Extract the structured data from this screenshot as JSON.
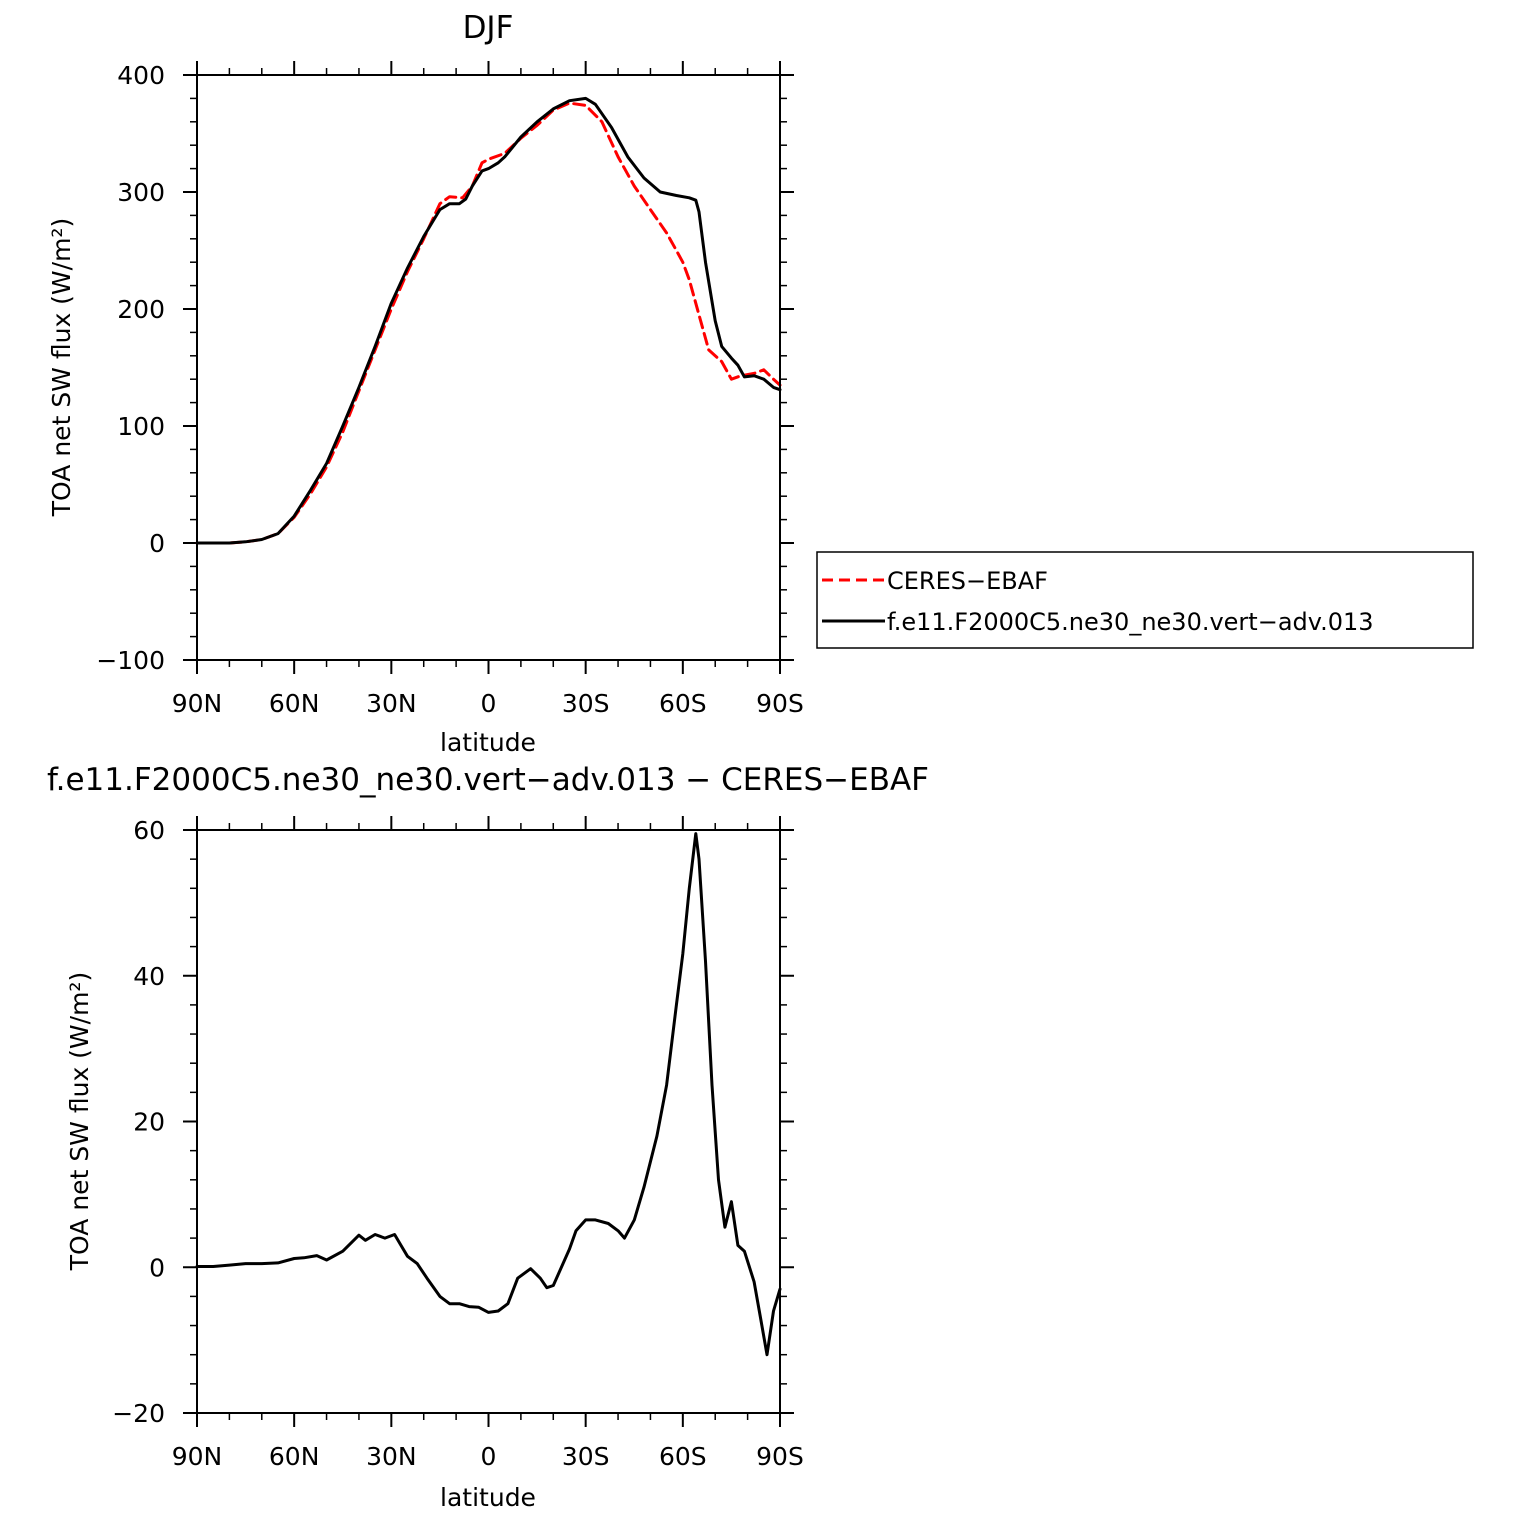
{
  "chart_data": [
    {
      "type": "line",
      "title": "DJF",
      "xlabel": "latitude",
      "ylabel": "TOA net SW flux (W/m²)",
      "xlim": [
        90,
        -90
      ],
      "ylim": [
        -100,
        400
      ],
      "xticks": [
        {
          "value": 90,
          "label": "90N"
        },
        {
          "value": 60,
          "label": "60N"
        },
        {
          "value": 30,
          "label": "30N"
        },
        {
          "value": 0,
          "label": "0"
        },
        {
          "value": -30,
          "label": "30S"
        },
        {
          "value": -60,
          "label": "60S"
        },
        {
          "value": -90,
          "label": "90S"
        }
      ],
      "yticks": [
        {
          "value": -100,
          "label": "−100"
        },
        {
          "value": 0,
          "label": "0"
        },
        {
          "value": 100,
          "label": "100"
        },
        {
          "value": 200,
          "label": "200"
        },
        {
          "value": 300,
          "label": "300"
        },
        {
          "value": 400,
          "label": "400"
        }
      ],
      "legend": "right",
      "series": [
        {
          "name": "CERES−EBAF",
          "color": "#ff0000",
          "dash": "dashed",
          "points": [
            [
              90,
              0
            ],
            [
              85,
              0
            ],
            [
              80,
              0
            ],
            [
              75,
              1
            ],
            [
              70,
              3
            ],
            [
              65,
              8
            ],
            [
              60,
              22
            ],
            [
              55,
              42
            ],
            [
              50,
              65
            ],
            [
              45,
              95
            ],
            [
              40,
              130
            ],
            [
              35,
              165
            ],
            [
              30,
              200
            ],
            [
              25,
              232
            ],
            [
              20,
              260
            ],
            [
              15,
              290
            ],
            [
              12,
              296
            ],
            [
              8,
              295
            ],
            [
              5,
              305
            ],
            [
              2,
              325
            ],
            [
              0,
              328
            ],
            [
              -5,
              333
            ],
            [
              -10,
              346
            ],
            [
              -15,
              357
            ],
            [
              -20,
              370
            ],
            [
              -25,
              376
            ],
            [
              -30,
              374
            ],
            [
              -35,
              360
            ],
            [
              -40,
              330
            ],
            [
              -45,
              305
            ],
            [
              -50,
              285
            ],
            [
              -55,
              265
            ],
            [
              -58,
              250
            ],
            [
              -60,
              240
            ],
            [
              -62,
              225
            ],
            [
              -65,
              195
            ],
            [
              -68,
              165
            ],
            [
              -72,
              155
            ],
            [
              -75,
              140
            ],
            [
              -78,
              143
            ],
            [
              -82,
              145
            ],
            [
              -85,
              148
            ],
            [
              -88,
              140
            ],
            [
              -90,
              135
            ]
          ]
        },
        {
          "name": "f.e11.F2000C5.ne30_ne30.vert−adv.013",
          "color": "#000000",
          "dash": "solid",
          "points": [
            [
              90,
              0
            ],
            [
              85,
              0
            ],
            [
              80,
              0
            ],
            [
              75,
              1
            ],
            [
              70,
              3
            ],
            [
              65,
              8
            ],
            [
              60,
              23
            ],
            [
              55,
              45
            ],
            [
              50,
              68
            ],
            [
              45,
              100
            ],
            [
              40,
              133
            ],
            [
              35,
              168
            ],
            [
              30,
              205
            ],
            [
              25,
              235
            ],
            [
              20,
              262
            ],
            [
              15,
              285
            ],
            [
              12,
              290
            ],
            [
              9,
              290
            ],
            [
              7,
              294
            ],
            [
              5,
              305
            ],
            [
              2,
              318
            ],
            [
              0,
              320
            ],
            [
              -3,
              325
            ],
            [
              -5,
              330
            ],
            [
              -10,
              347
            ],
            [
              -15,
              360
            ],
            [
              -20,
              371
            ],
            [
              -25,
              378
            ],
            [
              -30,
              380
            ],
            [
              -33,
              375
            ],
            [
              -38,
              355
            ],
            [
              -43,
              330
            ],
            [
              -48,
              312
            ],
            [
              -53,
              300
            ],
            [
              -58,
              297
            ],
            [
              -62,
              295
            ],
            [
              -64,
              293
            ],
            [
              -65,
              283
            ],
            [
              -67,
              240
            ],
            [
              -70,
              190
            ],
            [
              -72,
              168
            ],
            [
              -75,
              158
            ],
            [
              -77,
              152
            ],
            [
              -79,
              142
            ],
            [
              -82,
              143
            ],
            [
              -85,
              140
            ],
            [
              -88,
              133
            ],
            [
              -90,
              131
            ]
          ]
        }
      ]
    },
    {
      "type": "line",
      "title": "f.e11.F2000C5.ne30_ne30.vert−adv.013 − CERES−EBAF",
      "xlabel": "latitude",
      "ylabel": "TOA net SW flux (W/m²)",
      "xlim": [
        90,
        -90
      ],
      "ylim": [
        -20,
        60
      ],
      "xticks": [
        {
          "value": 90,
          "label": "90N"
        },
        {
          "value": 60,
          "label": "60N"
        },
        {
          "value": 30,
          "label": "30N"
        },
        {
          "value": 0,
          "label": "0"
        },
        {
          "value": -30,
          "label": "30S"
        },
        {
          "value": -60,
          "label": "60S"
        },
        {
          "value": -90,
          "label": "90S"
        }
      ],
      "yticks": [
        {
          "value": -20,
          "label": "−20"
        },
        {
          "value": 0,
          "label": "0"
        },
        {
          "value": 20,
          "label": "20"
        },
        {
          "value": 40,
          "label": "40"
        },
        {
          "value": 60,
          "label": "60"
        }
      ],
      "series": [
        {
          "color": "#000000",
          "dash": "solid",
          "points": [
            [
              90,
              0.1
            ],
            [
              85,
              0.1
            ],
            [
              80,
              0.3
            ],
            [
              75,
              0.5
            ],
            [
              70,
              0.5
            ],
            [
              65,
              0.6
            ],
            [
              60,
              1.2
            ],
            [
              57,
              1.3
            ],
            [
              53,
              1.6
            ],
            [
              50,
              1.0
            ],
            [
              45,
              2.2
            ],
            [
              40,
              4.4
            ],
            [
              38,
              3.7
            ],
            [
              35,
              4.5
            ],
            [
              32,
              4.0
            ],
            [
              29,
              4.5
            ],
            [
              27,
              3.0
            ],
            [
              25,
              1.5
            ],
            [
              22,
              0.5
            ],
            [
              19,
              -1.5
            ],
            [
              15,
              -4.0
            ],
            [
              12,
              -5.0
            ],
            [
              9,
              -5.0
            ],
            [
              6,
              -5.4
            ],
            [
              3,
              -5.5
            ],
            [
              0,
              -6.2
            ],
            [
              -3,
              -6.0
            ],
            [
              -6,
              -5.0
            ],
            [
              -9,
              -1.5
            ],
            [
              -13,
              -0.2
            ],
            [
              -16,
              -1.5
            ],
            [
              -18,
              -2.8
            ],
            [
              -20,
              -2.5
            ],
            [
              -25,
              2.5
            ],
            [
              -27,
              5.0
            ],
            [
              -30,
              6.5
            ],
            [
              -33,
              6.5
            ],
            [
              -37,
              6.0
            ],
            [
              -40,
              5.0
            ],
            [
              -42,
              4.0
            ],
            [
              -45,
              6.5
            ],
            [
              -48,
              11.0
            ],
            [
              -52,
              18.0
            ],
            [
              -55,
              25.0
            ],
            [
              -58,
              36.0
            ],
            [
              -60,
              43.0
            ],
            [
              -62,
              52.0
            ],
            [
              -64,
              59.5
            ],
            [
              -65,
              56.0
            ],
            [
              -67,
              42.0
            ],
            [
              -69,
              25.0
            ],
            [
              -71,
              12.0
            ],
            [
              -73,
              5.5
            ],
            [
              -75,
              9.0
            ],
            [
              -77,
              3.0
            ],
            [
              -79,
              2.2
            ],
            [
              -82,
              -2.0
            ],
            [
              -84,
              -7.0
            ],
            [
              -86,
              -12.0
            ],
            [
              -88,
              -6.0
            ],
            [
              -90,
              -3.0
            ]
          ]
        }
      ]
    }
  ]
}
